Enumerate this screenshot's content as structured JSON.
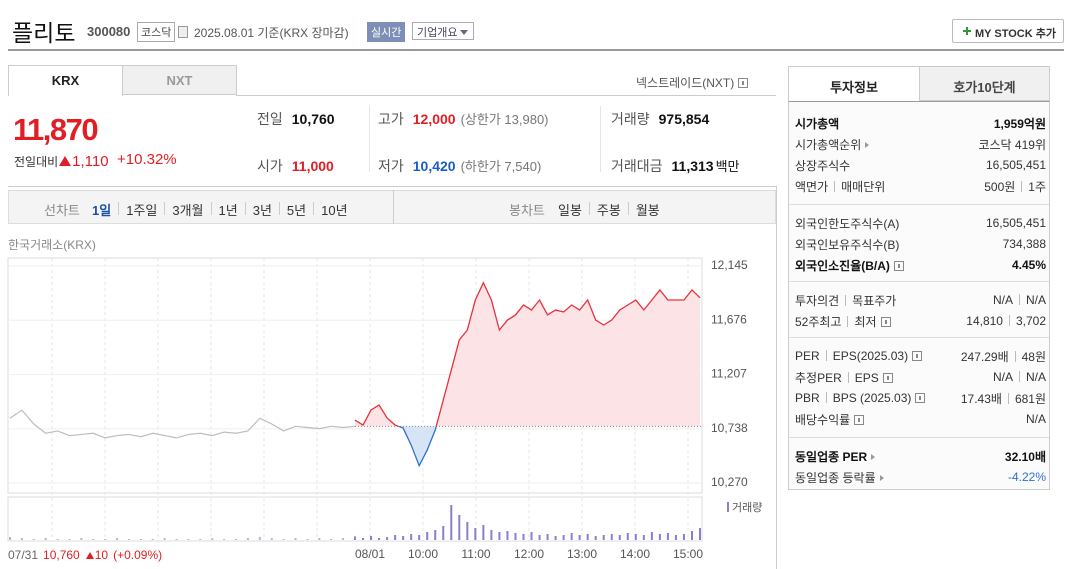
{
  "header": {
    "name": "플리토",
    "code": "300080",
    "market": "코스닥",
    "date": "2025.08.01 기준(KRX 장마감)",
    "realtime": "실시간",
    "overview": "기업개요",
    "mystock": "MY STOCK 추가"
  },
  "tabs": [
    "KRX",
    "NXT"
  ],
  "nxt_link": "넥스트레이드(NXT)",
  "price": {
    "current": "11,870",
    "change_label": "전일대비",
    "change": "1,110",
    "change_pct": "+10.32%"
  },
  "stats": [
    [
      {
        "label": "전일",
        "value": "10,760"
      },
      {
        "label": "고가",
        "value": "12,000",
        "limit": "(상한가 13,980)"
      },
      {
        "label": "거래량",
        "value": "975,854"
      }
    ],
    [
      {
        "label": "시가",
        "value": "11,000"
      },
      {
        "label": "저가",
        "value": "10,420",
        "limit": "(하한가 7,540)"
      },
      {
        "label": "거래대금",
        "value": "11,313",
        "unit": "백만"
      }
    ]
  ],
  "periods": {
    "line_label": "선차트",
    "line": [
      "1일",
      "1주일",
      "3개월",
      "1년",
      "3년",
      "5년",
      "10년"
    ],
    "candle_label": "봉차트",
    "candle": [
      "일봉",
      "주봉",
      "월봉"
    ]
  },
  "chart": {
    "type": "line",
    "source": "한국거래소(KRX)",
    "ylim": [
      10184,
      12214
    ],
    "yticks": [
      {
        "value": 12145,
        "label": "12,145"
      },
      {
        "value": 11676,
        "label": "11,676"
      },
      {
        "value": 11207,
        "label": "11,207"
      },
      {
        "value": 10738,
        "label": "10,738"
      },
      {
        "value": 10270,
        "label": "10,270"
      }
    ],
    "baseline": 10760,
    "x_labels": [
      "08/01",
      "10:00",
      "11:00",
      "12:00",
      "13:00",
      "14:00",
      "15:00"
    ],
    "series": [
      {
        "color": "#bdbdbd",
        "values": [
          10830,
          10900,
          10780,
          10700,
          10720,
          10680,
          10690,
          10700,
          10660,
          10680,
          10690,
          10670,
          10700,
          10680,
          10660,
          10690,
          10700,
          10680,
          10710,
          10700,
          10720,
          10830,
          10780,
          10720,
          10760,
          10750,
          10740,
          10760,
          10750,
          10760
        ]
      },
      {
        "color": "#e8313a",
        "down_color": "#2f6fcf",
        "fill": "#fce3e5",
        "down_fill": "#d6e5f6",
        "values": [
          10814,
          10771,
          10901,
          10944,
          10832,
          10771,
          10745,
          10598,
          10420,
          10555,
          10728,
          10987,
          11246,
          11506,
          11592,
          11851,
          12000,
          11851,
          11592,
          11678,
          11722,
          11808,
          11765,
          11851,
          11722,
          11765,
          11748,
          11808,
          11765,
          11851,
          11678,
          11635,
          11678,
          11765,
          11808,
          11851,
          11765,
          11851,
          11938,
          11851,
          11851,
          11851,
          11938,
          11870
        ]
      }
    ],
    "volume": {
      "label": "거래량",
      "color": "#8a7fc9",
      "prev_color": "#b9b4d6",
      "ylim": [
        0,
        40
      ],
      "prev_values": [
        3,
        2,
        1,
        2,
        1,
        1,
        2,
        1,
        1,
        2,
        1,
        1,
        1,
        2,
        1,
        1,
        1,
        2,
        1,
        1,
        2,
        3,
        2,
        1,
        2,
        1,
        2,
        1,
        2,
        4
      ],
      "values": [
        3,
        2,
        4,
        2,
        3,
        5,
        4,
        6,
        5,
        8,
        10,
        14,
        35,
        25,
        18,
        12,
        15,
        10,
        8,
        9,
        7,
        6,
        8,
        5,
        6,
        4,
        5,
        7,
        5,
        6,
        4,
        5,
        6,
        5,
        7,
        6,
        5,
        8,
        6,
        7,
        5,
        6,
        9,
        12
      ]
    },
    "prev_info": {
      "date": "07/31",
      "close": "10,760",
      "change": "10",
      "change_pct": "(+0.09%)"
    }
  },
  "invest": {
    "tabs": [
      "투자정보",
      "호가10단계"
    ],
    "sections": [
      {
        "rows": [
          {
            "label": [
              "시가총액"
            ],
            "value": [
              "1,959억원"
            ],
            "bold": true
          },
          {
            "label": [
              "시가총액순위"
            ],
            "arrow": true,
            "value": [
              "코스닥 419위"
            ]
          },
          {
            "label": [
              "상장주식수"
            ],
            "value": [
              "16,505,451"
            ]
          },
          {
            "label": [
              "액면가",
              "매매단위"
            ],
            "value": [
              "500원",
              "1주"
            ]
          }
        ]
      },
      {
        "rows": [
          {
            "label": [
              "외국인한도주식수(A)"
            ],
            "value": [
              "16,505,451"
            ]
          },
          {
            "label": [
              "외국인보유주식수(B)"
            ],
            "value": [
              "734,388"
            ]
          },
          {
            "label": [
              "외국인소진율(B/A)"
            ],
            "help": true,
            "value": [
              "4.45%"
            ],
            "bold": true
          }
        ]
      },
      {
        "rows": [
          {
            "label": [
              "투자의견",
              "목표주가"
            ],
            "value": [
              "N/A",
              "N/A"
            ]
          },
          {
            "label": [
              "52주최고",
              "최저"
            ],
            "help": true,
            "value": [
              "14,810",
              "3,702"
            ]
          }
        ]
      },
      {
        "rows": [
          {
            "label": [
              "PER",
              "EPS(2025.03)"
            ],
            "help": true,
            "value": [
              "247.29배",
              "48원"
            ]
          },
          {
            "label": [
              "추정PER",
              "EPS"
            ],
            "help": true,
            "value": [
              "N/A",
              "N/A"
            ]
          },
          {
            "label": [
              "PBR",
              "BPS (2025.03)"
            ],
            "help": true,
            "value": [
              "17.43배",
              "681원"
            ]
          },
          {
            "label": [
              "배당수익률"
            ],
            "help": true,
            "value": [
              "N/A"
            ]
          }
        ]
      },
      {
        "rows": [
          {
            "label": [
              "동일업종 PER"
            ],
            "arrow": true,
            "value": [
              "32.10배"
            ],
            "bold": true
          },
          {
            "label": [
              "동일업종 등락률"
            ],
            "arrow": true,
            "value": [
              "-4.22%"
            ],
            "color": "#2f6fcf"
          }
        ]
      }
    ]
  }
}
